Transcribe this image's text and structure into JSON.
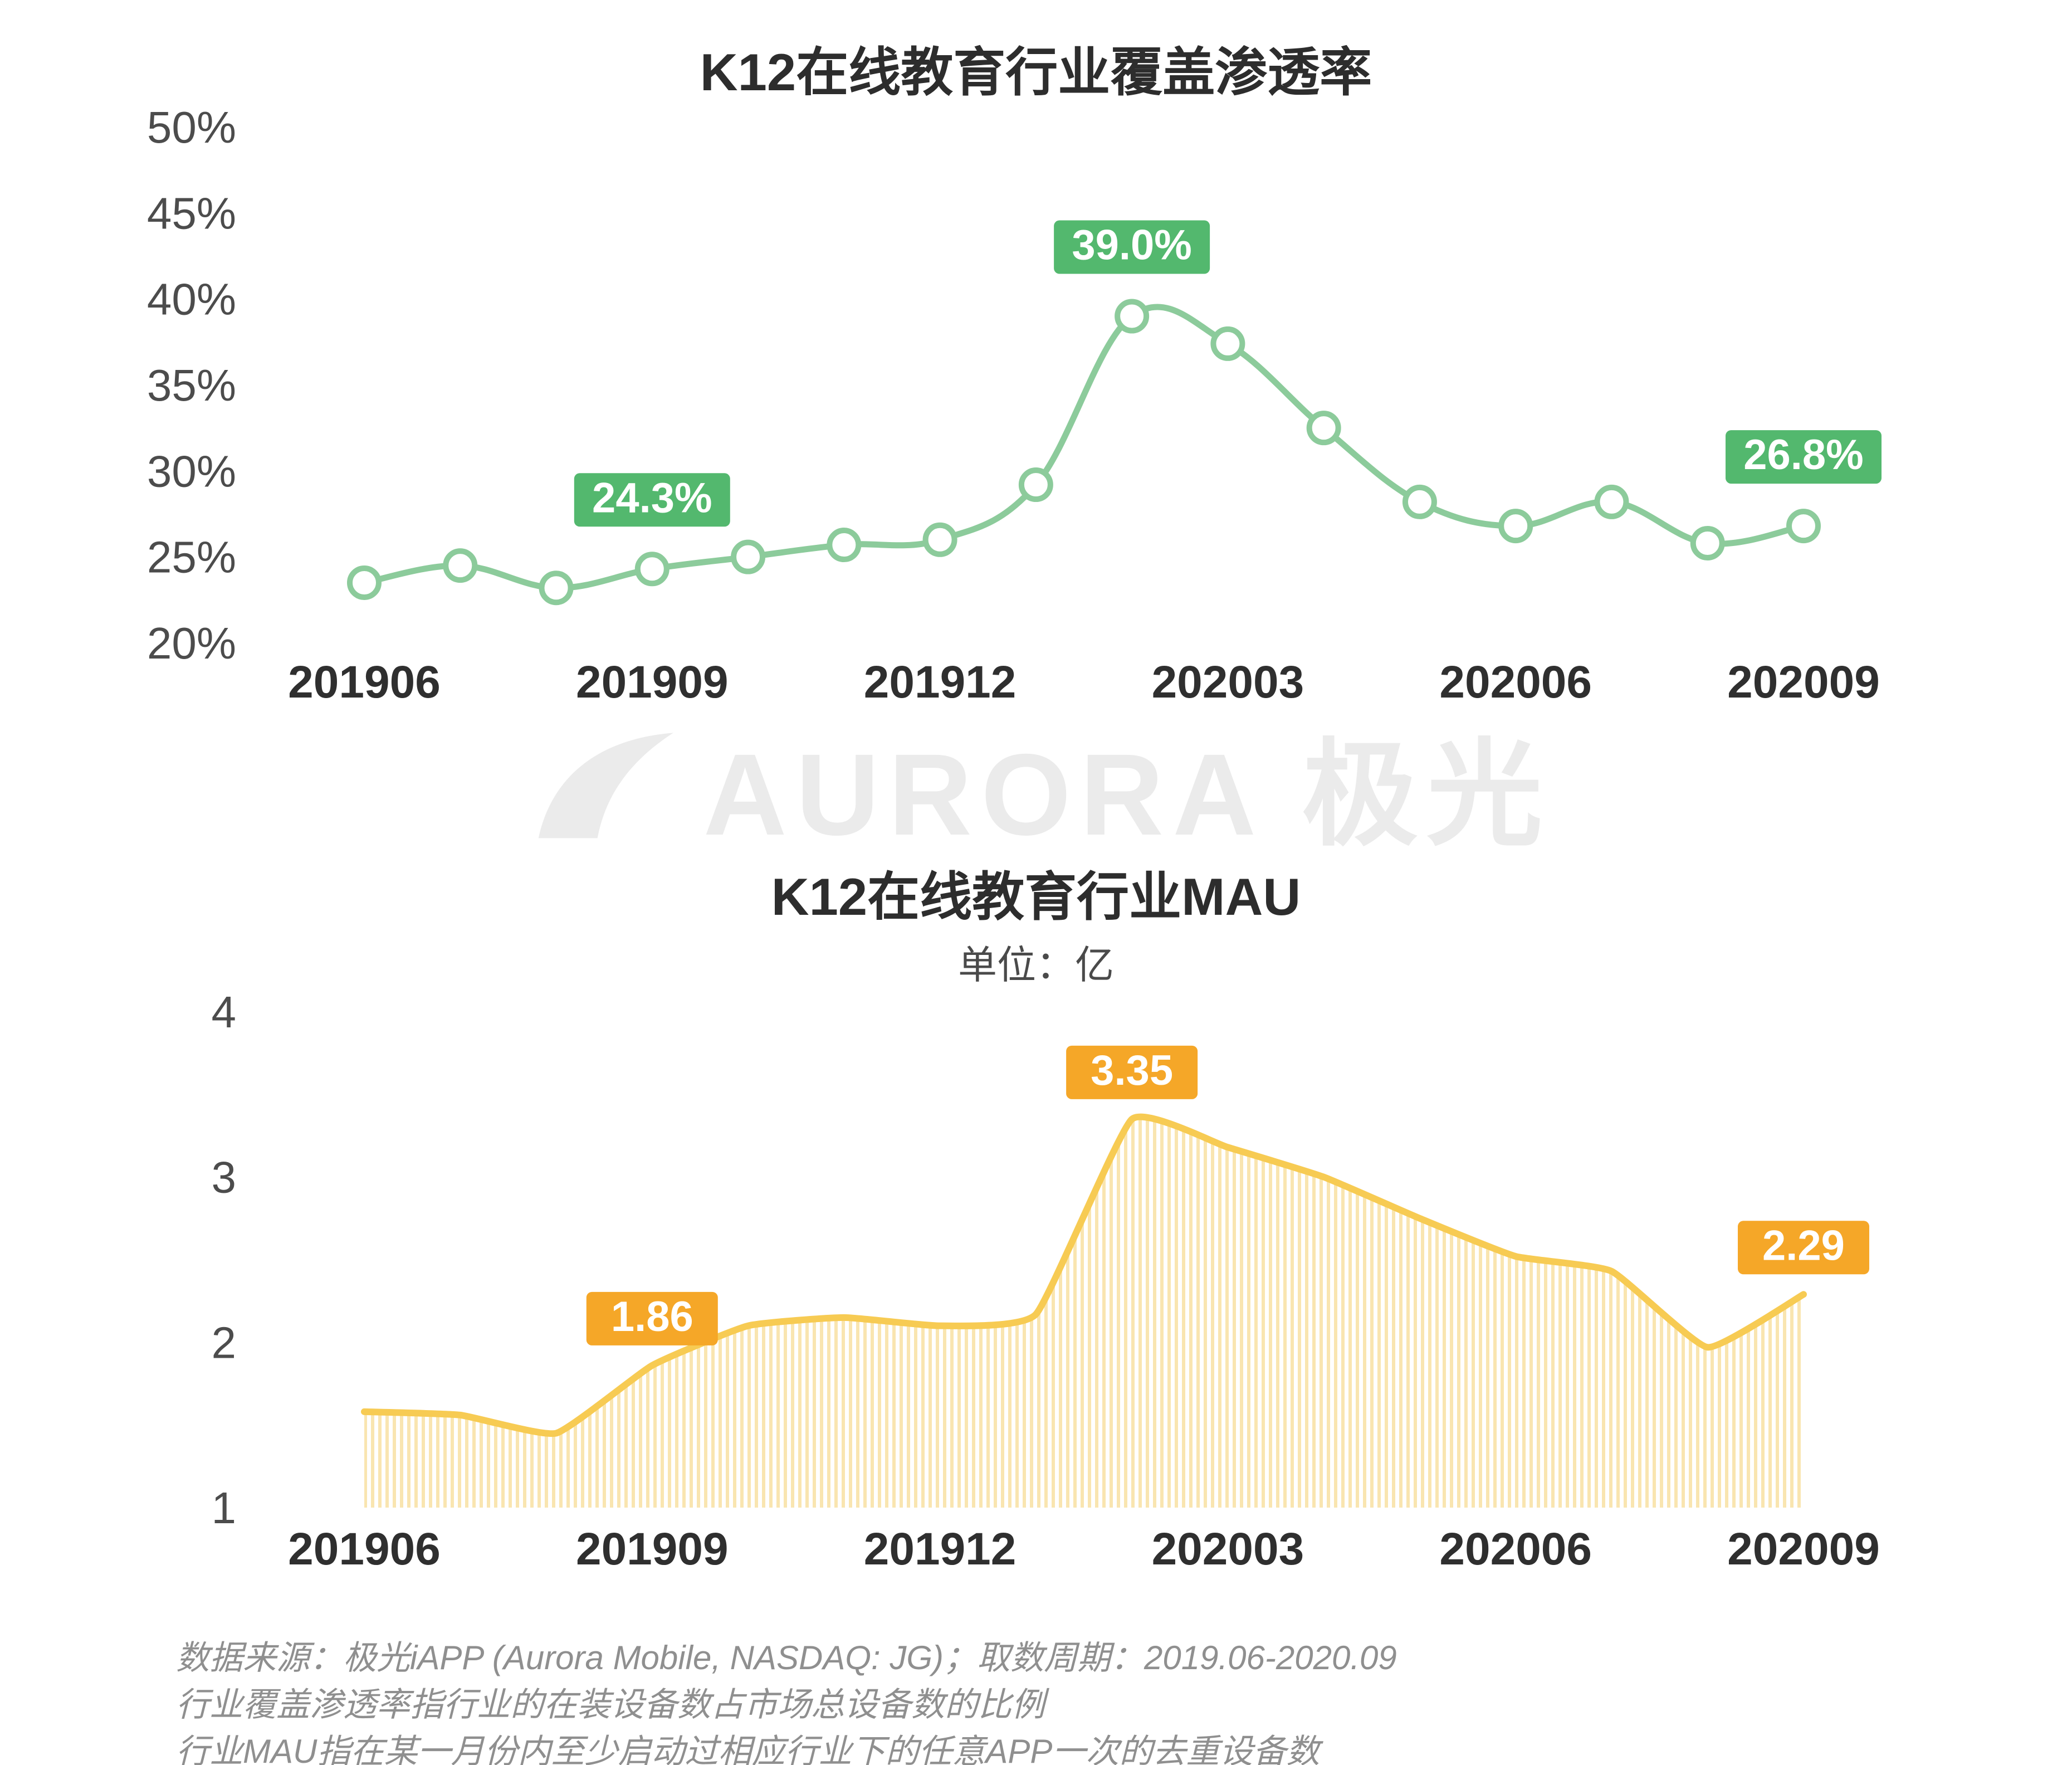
{
  "watermark": {
    "text": "AURORA 极光"
  },
  "chart_data": [
    {
      "type": "line",
      "title": "K12在线教育行业覆盖渗透率",
      "x": [
        "201906",
        "201907",
        "201908",
        "201909",
        "201910",
        "201911",
        "201912",
        "202001",
        "202002",
        "202003",
        "202004",
        "202005",
        "202006",
        "202007",
        "202008",
        "202009"
      ],
      "values": [
        23.5,
        24.5,
        23.2,
        24.3,
        25.0,
        25.7,
        26.0,
        29.2,
        39.0,
        37.4,
        32.5,
        28.2,
        26.8,
        28.2,
        25.8,
        26.8
      ],
      "ylim": [
        20,
        50
      ],
      "yticks": [
        20,
        25,
        30,
        35,
        40,
        45,
        50
      ],
      "ytick_suffix": "%",
      "xticks": [
        "201906",
        "201909",
        "201912",
        "202003",
        "202006",
        "202009"
      ],
      "annotations": [
        {
          "x": "201909",
          "label": "24.3%"
        },
        {
          "x": "202002",
          "label": "39.0%"
        },
        {
          "x": "202009",
          "label": "26.8%"
        }
      ],
      "grid": false,
      "legend": null,
      "line_color": "#8CCB9B",
      "marker_fill": "#ffffff",
      "badge_color": "#53B86E"
    },
    {
      "type": "area",
      "title": "K12在线教育行业MAU",
      "subtitle": "单位：亿",
      "x": [
        "201906",
        "201907",
        "201908",
        "201909",
        "201910",
        "201911",
        "201912",
        "202001",
        "202002",
        "202003",
        "202004",
        "202005",
        "202006",
        "202007",
        "202008",
        "202009"
      ],
      "values": [
        1.58,
        1.56,
        1.45,
        1.86,
        2.1,
        2.15,
        2.1,
        2.17,
        3.35,
        3.18,
        3.0,
        2.75,
        2.52,
        2.43,
        1.97,
        2.29
      ],
      "ylim": [
        1,
        4
      ],
      "yticks": [
        1,
        2,
        3,
        4
      ],
      "ytick_suffix": "",
      "xticks": [
        "201906",
        "201909",
        "201912",
        "202003",
        "202006",
        "202009"
      ],
      "annotations": [
        {
          "x": "201909",
          "label": "1.86"
        },
        {
          "x": "202002",
          "label": "3.35"
        },
        {
          "x": "202009",
          "label": "2.29"
        }
      ],
      "grid": false,
      "legend": null,
      "line_color": "#F7CB53",
      "area_fill": "#F9E5B0",
      "badge_color": "#F5A728"
    }
  ],
  "footer": {
    "lines": [
      "数据来源：极光iAPP (Aurora Mobile, NASDAQ: JG)；取数周期：2019.06-2020.09",
      "行业覆盖渗透率指行业的在装设备数占市场总设备数的比例",
      "行业MAU指在某一月份内至少启动过相应行业下的任意APP一次的去重设备数"
    ]
  }
}
